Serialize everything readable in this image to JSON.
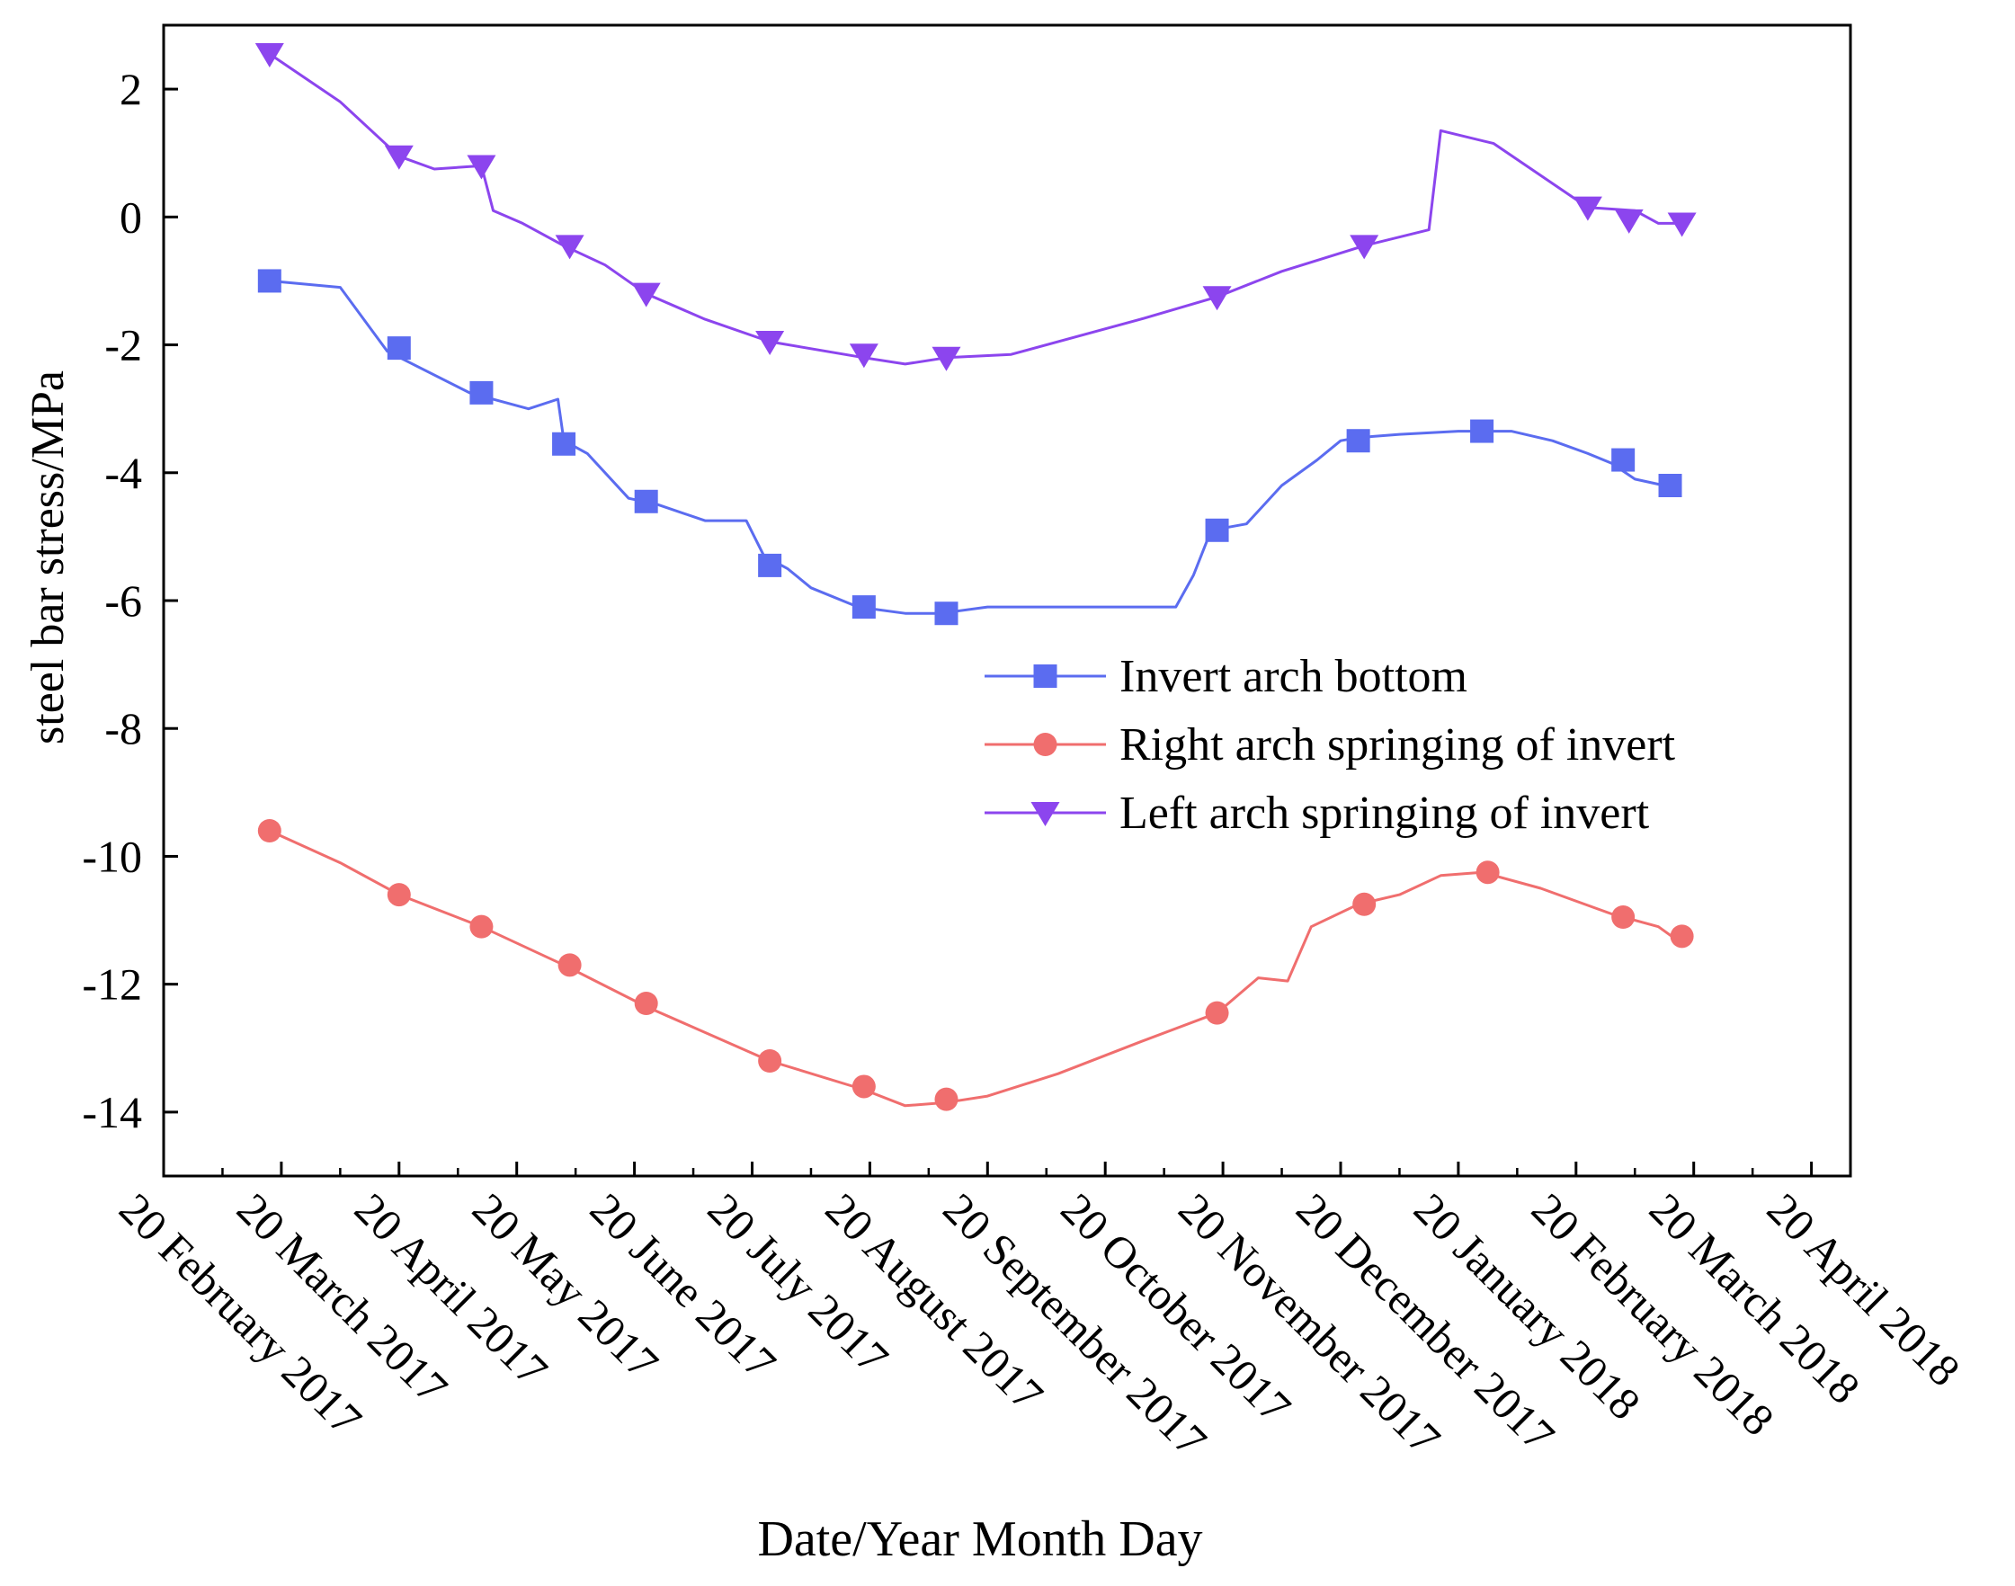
{
  "chart_data": {
    "type": "line",
    "title": "",
    "xlabel": "Date/Year Month Day",
    "ylabel": "steel bar stress/MPa",
    "ylim": [
      -15,
      3
    ],
    "xlim": [
      0,
      14
    ],
    "yticks": [
      2,
      0,
      -2,
      -4,
      -6,
      -8,
      -10,
      -12,
      -14
    ],
    "ytick_labels": [
      "2",
      "0",
      "-2",
      "-4",
      "-6",
      "-8",
      "-10",
      "-12",
      "-14"
    ],
    "categories": [
      "20 February 2017",
      "20 March 2017",
      "20 April 2017",
      "20 May 2017",
      "20 June 2017",
      "20 July 2017",
      "20 August 2017",
      "20 September 2017",
      "20 October 2017",
      "20 November 2017",
      "20 December 2017",
      "20 January 2018",
      "20 February 2018",
      "20 March 2018",
      "20 April 2018"
    ],
    "legend_position": "center-right",
    "series": [
      {
        "name": "Invert arch bottom",
        "color": "#5b6cf0",
        "marker": "square",
        "line": [
          [
            0.9,
            -1.0
          ],
          [
            1.5,
            -1.1
          ],
          [
            1.9,
            -2.1
          ],
          [
            2.6,
            -2.75
          ],
          [
            3.1,
            -3.0
          ],
          [
            3.35,
            -2.85
          ],
          [
            3.4,
            -3.5
          ],
          [
            3.6,
            -3.7
          ],
          [
            3.95,
            -4.4
          ],
          [
            4.2,
            -4.5
          ],
          [
            4.6,
            -4.75
          ],
          [
            4.95,
            -4.75
          ],
          [
            5.1,
            -5.3
          ],
          [
            5.3,
            -5.5
          ],
          [
            5.5,
            -5.8
          ],
          [
            5.9,
            -6.1
          ],
          [
            6.3,
            -6.2
          ],
          [
            6.6,
            -6.2
          ],
          [
            7.0,
            -6.1
          ],
          [
            8.6,
            -6.1
          ],
          [
            8.75,
            -5.6
          ],
          [
            8.9,
            -4.9
          ],
          [
            9.2,
            -4.8
          ],
          [
            9.5,
            -4.2
          ],
          [
            9.8,
            -3.8
          ],
          [
            10.0,
            -3.5
          ],
          [
            10.15,
            -3.45
          ],
          [
            10.5,
            -3.4
          ],
          [
            11.0,
            -3.35
          ],
          [
            11.45,
            -3.35
          ],
          [
            11.8,
            -3.5
          ],
          [
            12.1,
            -3.7
          ],
          [
            12.3,
            -3.85
          ],
          [
            12.5,
            -4.1
          ],
          [
            12.75,
            -4.2
          ]
        ],
        "markers": [
          [
            0.9,
            -1.0
          ],
          [
            2.0,
            -2.05
          ],
          [
            2.7,
            -2.75
          ],
          [
            3.4,
            -3.55
          ],
          [
            4.1,
            -4.45
          ],
          [
            5.15,
            -5.45
          ],
          [
            5.95,
            -6.1
          ],
          [
            6.65,
            -6.2
          ],
          [
            8.95,
            -4.9
          ],
          [
            10.15,
            -3.5
          ],
          [
            11.2,
            -3.35
          ],
          [
            12.4,
            -3.8
          ],
          [
            12.8,
            -4.2
          ]
        ],
        "marker_spacing": "every ~0.5–1 month"
      },
      {
        "name": "Right arch springing of invert",
        "color": "#f06e6e",
        "marker": "circle",
        "line": [
          [
            0.9,
            -9.6
          ],
          [
            1.5,
            -10.1
          ],
          [
            2.0,
            -10.6
          ],
          [
            2.7,
            -11.1
          ],
          [
            3.4,
            -11.7
          ],
          [
            4.1,
            -12.35
          ],
          [
            5.15,
            -13.2
          ],
          [
            5.95,
            -13.65
          ],
          [
            6.3,
            -13.9
          ],
          [
            6.65,
            -13.85
          ],
          [
            7.0,
            -13.75
          ],
          [
            7.6,
            -13.4
          ],
          [
            8.3,
            -12.9
          ],
          [
            8.95,
            -12.45
          ],
          [
            9.3,
            -11.9
          ],
          [
            9.55,
            -11.95
          ],
          [
            9.75,
            -11.1
          ],
          [
            10.15,
            -10.75
          ],
          [
            10.5,
            -10.6
          ],
          [
            10.85,
            -10.3
          ],
          [
            11.2,
            -10.25
          ],
          [
            11.7,
            -10.5
          ],
          [
            12.3,
            -10.9
          ],
          [
            12.7,
            -11.1
          ],
          [
            12.85,
            -11.3
          ]
        ],
        "markers": [
          [
            0.9,
            -9.6
          ],
          [
            2.0,
            -10.6
          ],
          [
            2.7,
            -11.1
          ],
          [
            3.45,
            -11.7
          ],
          [
            4.1,
            -12.3
          ],
          [
            5.15,
            -13.2
          ],
          [
            5.95,
            -13.6
          ],
          [
            6.65,
            -13.8
          ],
          [
            8.95,
            -12.45
          ],
          [
            10.2,
            -10.75
          ],
          [
            11.25,
            -10.25
          ],
          [
            12.4,
            -10.95
          ],
          [
            12.9,
            -11.25
          ]
        ]
      },
      {
        "name": "Left arch springing of invert",
        "color": "#8c45ee",
        "marker": "triangle-down",
        "line": [
          [
            0.9,
            2.55
          ],
          [
            1.5,
            1.8
          ],
          [
            2.0,
            0.95
          ],
          [
            2.3,
            0.75
          ],
          [
            2.7,
            0.8
          ],
          [
            2.8,
            0.1
          ],
          [
            3.05,
            -0.1
          ],
          [
            3.4,
            -0.45
          ],
          [
            3.75,
            -0.75
          ],
          [
            4.1,
            -1.2
          ],
          [
            4.6,
            -1.6
          ],
          [
            5.15,
            -1.95
          ],
          [
            5.95,
            -2.2
          ],
          [
            6.3,
            -2.3
          ],
          [
            6.65,
            -2.2
          ],
          [
            7.2,
            -2.15
          ],
          [
            8.3,
            -1.6
          ],
          [
            8.95,
            -1.25
          ],
          [
            9.5,
            -0.85
          ],
          [
            10.2,
            -0.45
          ],
          [
            10.75,
            -0.2
          ],
          [
            10.85,
            1.35
          ],
          [
            11.3,
            1.15
          ],
          [
            12.1,
            0.15
          ],
          [
            12.5,
            0.1
          ],
          [
            12.7,
            -0.1
          ],
          [
            12.9,
            -0.1
          ]
        ],
        "markers": [
          [
            0.9,
            2.55
          ],
          [
            2.0,
            0.95
          ],
          [
            2.7,
            0.8
          ],
          [
            3.45,
            -0.45
          ],
          [
            4.1,
            -1.2
          ],
          [
            5.15,
            -1.95
          ],
          [
            5.95,
            -2.15
          ],
          [
            6.65,
            -2.2
          ],
          [
            8.95,
            -1.25
          ],
          [
            10.2,
            -0.45
          ],
          [
            12.1,
            0.15
          ],
          [
            12.45,
            -0.05
          ],
          [
            12.9,
            -0.1
          ]
        ]
      }
    ]
  }
}
